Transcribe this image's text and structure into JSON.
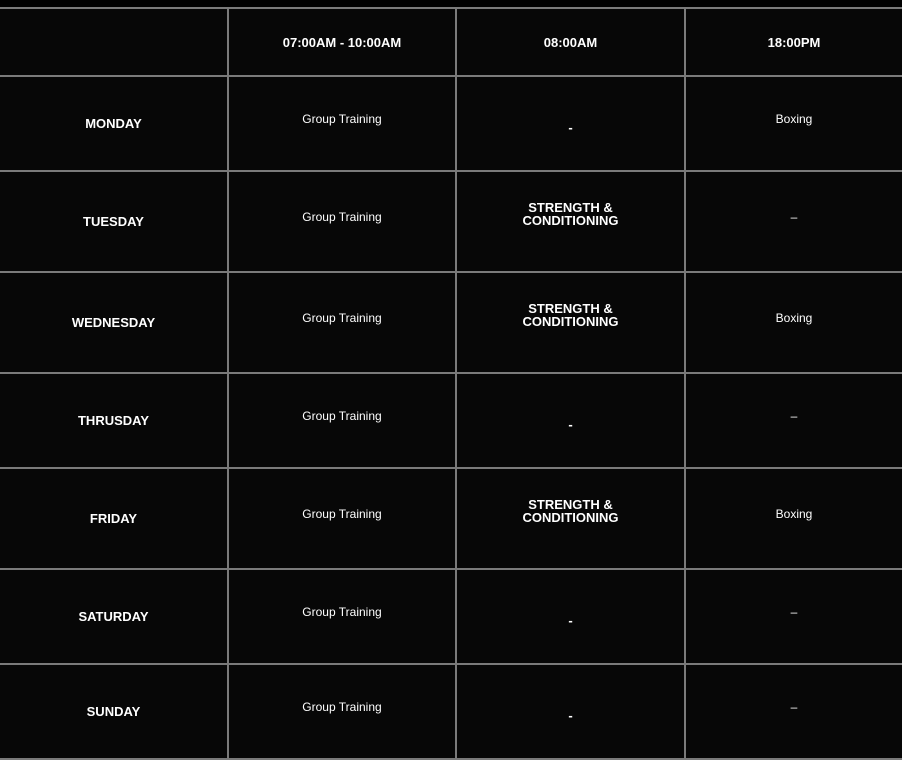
{
  "header": [
    "",
    "07:00AM - 10:00AM",
    "08:00AM",
    "18:00PM"
  ],
  "rows": [
    {
      "day": "MONDAY",
      "slot1": "Group Training",
      "slot2": "-",
      "slot3": "Boxing"
    },
    {
      "day": "TUESDAY",
      "slot1": "Group Training",
      "slot2": "STRENGTH & CONDITIONING",
      "slot3": "–"
    },
    {
      "day": "WEDNESDAY",
      "slot1": "Group Training",
      "slot2": "STRENGTH & CONDITIONING",
      "slot3": "Boxing"
    },
    {
      "day": "THRUSDAY",
      "slot1": "Group Training",
      "slot2": "-",
      "slot3": "–"
    },
    {
      "day": "FRIDAY",
      "slot1": "Group Training",
      "slot2": "STRENGTH & CONDITIONING",
      "slot3": "Boxing"
    },
    {
      "day": "SATURDAY",
      "slot1": "Group Training",
      "slot2": "-",
      "slot3": "–"
    },
    {
      "day": "SUNDAY",
      "slot1": "Group Training",
      "slot2": "-",
      "slot3": "–"
    }
  ]
}
